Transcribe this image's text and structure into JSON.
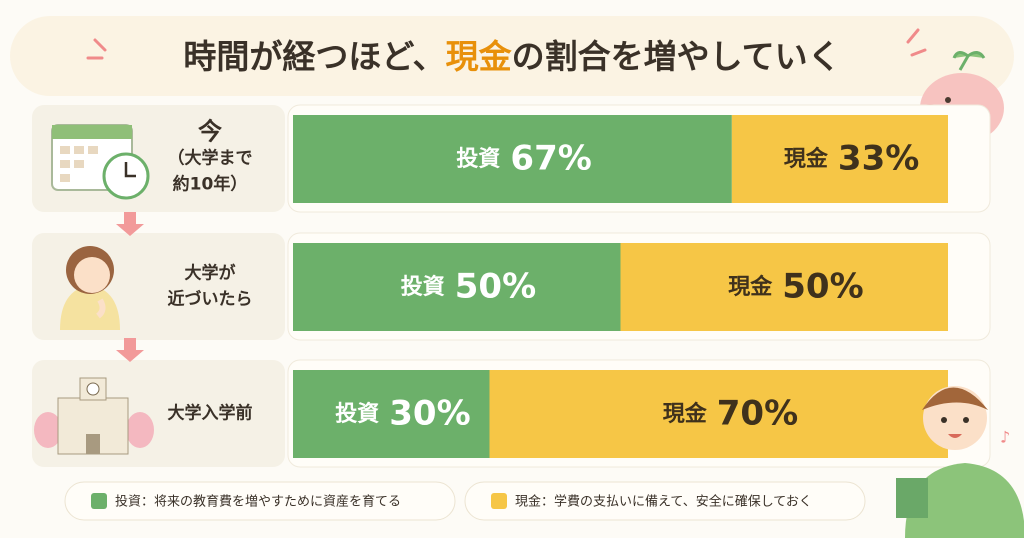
{
  "chart_data": {
    "type": "stacked_bar",
    "title": [
      "時間が経つほど、",
      "現金",
      "の割合を増やしていく"
    ],
    "categories": [
      [
        "今",
        "（大学まで",
        "約10年）"
      ],
      [
        "大学が",
        "近づいたら"
      ],
      [
        "大学入学前"
      ]
    ],
    "series": [
      {
        "name": "投資",
        "color": "#6cb06a",
        "values": [
          67,
          50,
          30
        ],
        "value_labels": [
          "67%",
          "50%",
          "30%"
        ]
      },
      {
        "name": "現金",
        "color": "#f6c646",
        "values": [
          33,
          50,
          70
        ],
        "value_labels": [
          "33%",
          "50%",
          "70%"
        ]
      }
    ],
    "legend": [
      "投資：将来の教育費を増やすために資産を育てる",
      "現金：学費の支払いに備えて、安全に確保しておく"
    ]
  }
}
